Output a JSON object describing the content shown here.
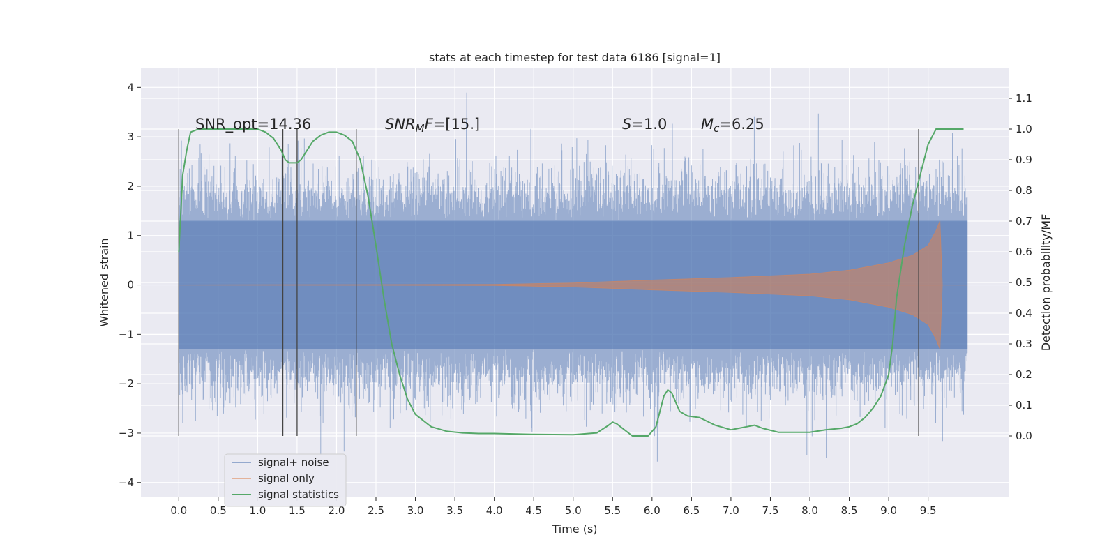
{
  "chart_data": {
    "type": "line",
    "title": "stats at each timestep for test data 6186 [signal=1]",
    "xlabel": "Time (s)",
    "ylabel": "Whitened strain",
    "ylabel_right": "Detection probability/MF",
    "xlim": [
      -0.48,
      10.52
    ],
    "ylim": [
      -4.3,
      4.4
    ],
    "ylim_right": [
      -0.2,
      1.2
    ],
    "x_ticks": [
      "0.0",
      "0.5",
      "1.0",
      "1.5",
      "2.0",
      "2.5",
      "3.0",
      "3.5",
      "4.0",
      "4.5",
      "5.0",
      "5.5",
      "6.0",
      "6.5",
      "7.0",
      "7.5",
      "8.0",
      "8.5",
      "9.0",
      "9.5"
    ],
    "y_ticks": [
      "4",
      "3",
      "2",
      "1",
      "0",
      "−1",
      "−2",
      "−3",
      "−4"
    ],
    "y_ticks_right": [
      "1.1",
      "1.0",
      "0.9",
      "0.8",
      "0.7",
      "0.6",
      "0.5",
      "0.4",
      "0.3",
      "0.2",
      "0.1",
      "0.0"
    ],
    "grid": true,
    "legend_position": "lower-left",
    "annotations": {
      "snr_opt": "SNR_opt=14.36",
      "snr_mf_base": "SNR",
      "snr_mf_sub": "M",
      "snr_mf_rest": "F=[15.]",
      "s_var": "S",
      "s_rest": "=1.0",
      "mc_var": "M",
      "mc_sub": "c",
      "mc_rest": "=6.25"
    },
    "vertical_markers": [
      0.0,
      1.32,
      1.5,
      2.25,
      9.38
    ],
    "series": [
      {
        "name": "signal+ noise",
        "color": "#4c72b0",
        "description_axis": "left",
        "x_range": [
          0.0,
          10.0
        ],
        "envelope_core": 1.3
      },
      {
        "name": "signal only",
        "color": "#dd8452",
        "description_axis": "left",
        "envelope": {
          "x": [
            0.0,
            4.0,
            5.0,
            6.0,
            7.0,
            8.0,
            8.5,
            9.0,
            9.3,
            9.5,
            9.6,
            9.65,
            9.68,
            10.0
          ],
          "y": [
            0.0,
            0.01,
            0.04,
            0.1,
            0.15,
            0.22,
            0.3,
            0.45,
            0.6,
            0.8,
            1.1,
            1.3,
            0.0,
            0.0
          ]
        }
      },
      {
        "name": "signal statistics",
        "color": "#55a868",
        "description_axis": "right",
        "x": [
          0.0,
          0.05,
          0.1,
          0.15,
          0.25,
          0.4,
          0.6,
          0.8,
          0.9,
          1.0,
          1.1,
          1.2,
          1.3,
          1.35,
          1.4,
          1.45,
          1.5,
          1.55,
          1.6,
          1.7,
          1.8,
          1.9,
          2.0,
          2.1,
          2.2,
          2.3,
          2.4,
          2.5,
          2.6,
          2.7,
          2.8,
          2.9,
          3.0,
          3.2,
          3.4,
          3.6,
          3.8,
          4.0,
          4.5,
          5.0,
          5.3,
          5.45,
          5.5,
          5.55,
          5.65,
          5.75,
          5.85,
          5.95,
          6.05,
          6.15,
          6.2,
          6.25,
          6.35,
          6.45,
          6.6,
          6.8,
          7.0,
          7.1,
          7.2,
          7.3,
          7.4,
          7.6,
          8.0,
          8.2,
          8.4,
          8.5,
          8.6,
          8.7,
          8.8,
          8.9,
          9.0,
          9.05,
          9.1,
          9.2,
          9.3,
          9.4,
          9.5,
          9.6,
          9.7,
          9.8,
          9.95
        ],
        "y": [
          0.6,
          0.85,
          0.93,
          0.99,
          1.0,
          1.0,
          1.0,
          1.0,
          1.0,
          1.0,
          0.99,
          0.97,
          0.93,
          0.9,
          0.89,
          0.89,
          0.89,
          0.9,
          0.92,
          0.96,
          0.98,
          0.99,
          0.99,
          0.98,
          0.96,
          0.9,
          0.78,
          0.62,
          0.45,
          0.3,
          0.2,
          0.12,
          0.07,
          0.03,
          0.015,
          0.01,
          0.008,
          0.008,
          0.005,
          0.004,
          0.01,
          0.035,
          0.045,
          0.04,
          0.02,
          0.0,
          0.0,
          0.0,
          0.03,
          0.13,
          0.15,
          0.14,
          0.08,
          0.065,
          0.06,
          0.035,
          0.02,
          0.025,
          0.03,
          0.035,
          0.025,
          0.012,
          0.012,
          0.02,
          0.025,
          0.03,
          0.04,
          0.06,
          0.09,
          0.13,
          0.2,
          0.3,
          0.45,
          0.62,
          0.75,
          0.85,
          0.95,
          1.0,
          1.0,
          1.0,
          1.0
        ]
      }
    ]
  }
}
